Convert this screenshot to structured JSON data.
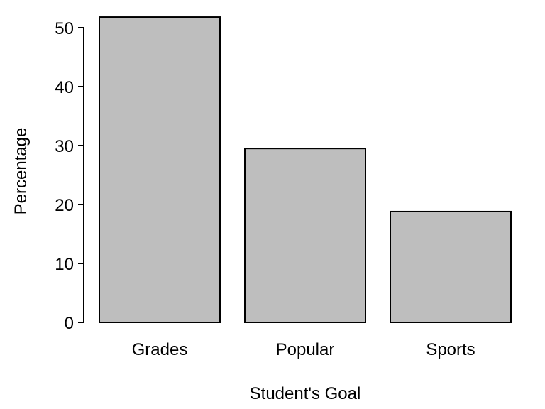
{
  "chart_data": {
    "type": "bar",
    "title": "",
    "xlabel": "Student's Goal",
    "ylabel": "Percentage",
    "categories": [
      "Grades",
      "Popular",
      "Sports"
    ],
    "values": [
      51.8,
      29.5,
      18.8
    ],
    "ylim": [
      0,
      52
    ],
    "yticks": [
      0,
      10,
      20,
      30,
      40,
      50
    ],
    "grid": false,
    "legend": "none",
    "colors": {
      "bar_fill": "#bebebe",
      "bar_stroke": "#000000",
      "axis": "#000000",
      "text": "#000000",
      "background": "#ffffff"
    }
  }
}
